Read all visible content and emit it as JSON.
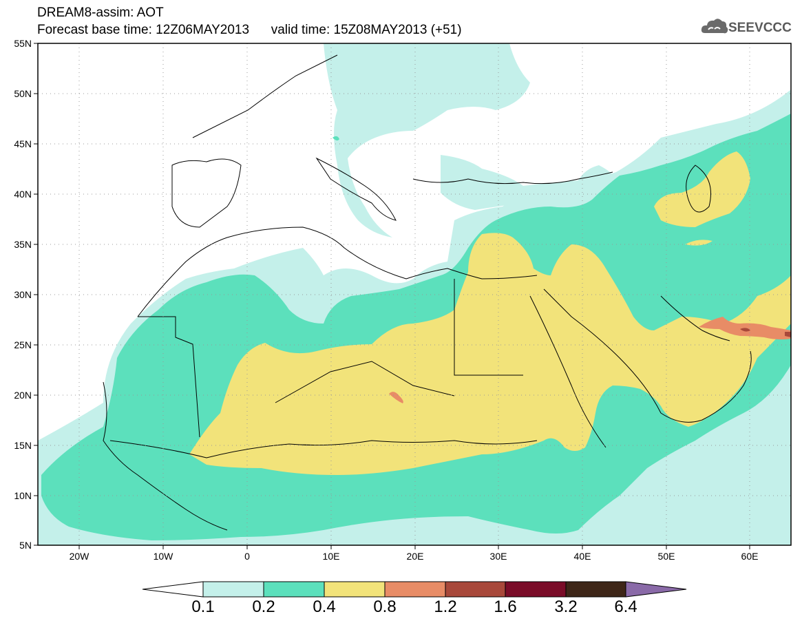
{
  "header": {
    "title_line1": "DREAM8-assim: AOT",
    "title_line2": "Forecast base time: 12Z06MAY2013      valid time: 15Z08MAY2013 (+51)"
  },
  "logo": {
    "text": "SEEVCCC",
    "icon": "cloud-icon",
    "color": "#5a5a5a"
  },
  "map": {
    "latitude_labels": [
      "55N",
      "50N",
      "45N",
      "40N",
      "35N",
      "30N",
      "25N",
      "20N",
      "15N",
      "10N",
      "5N"
    ],
    "longitude_labels": [
      "20W",
      "10W",
      "0",
      "10E",
      "20E",
      "30E",
      "40E",
      "50E",
      "60E"
    ],
    "frame_color": "#000000",
    "grid": "dotted"
  },
  "colorbar": {
    "labels": [
      "0.1",
      "0.2",
      "0.4",
      "0.8",
      "1.2",
      "1.6",
      "3.2",
      "6.4"
    ],
    "colors": [
      "#c4f0ea",
      "#5ce0bc",
      "#f2e37a",
      "#e88c66",
      "#a8483a",
      "#7a0c28",
      "#3e2618",
      "#8a6aa8"
    ]
  }
}
